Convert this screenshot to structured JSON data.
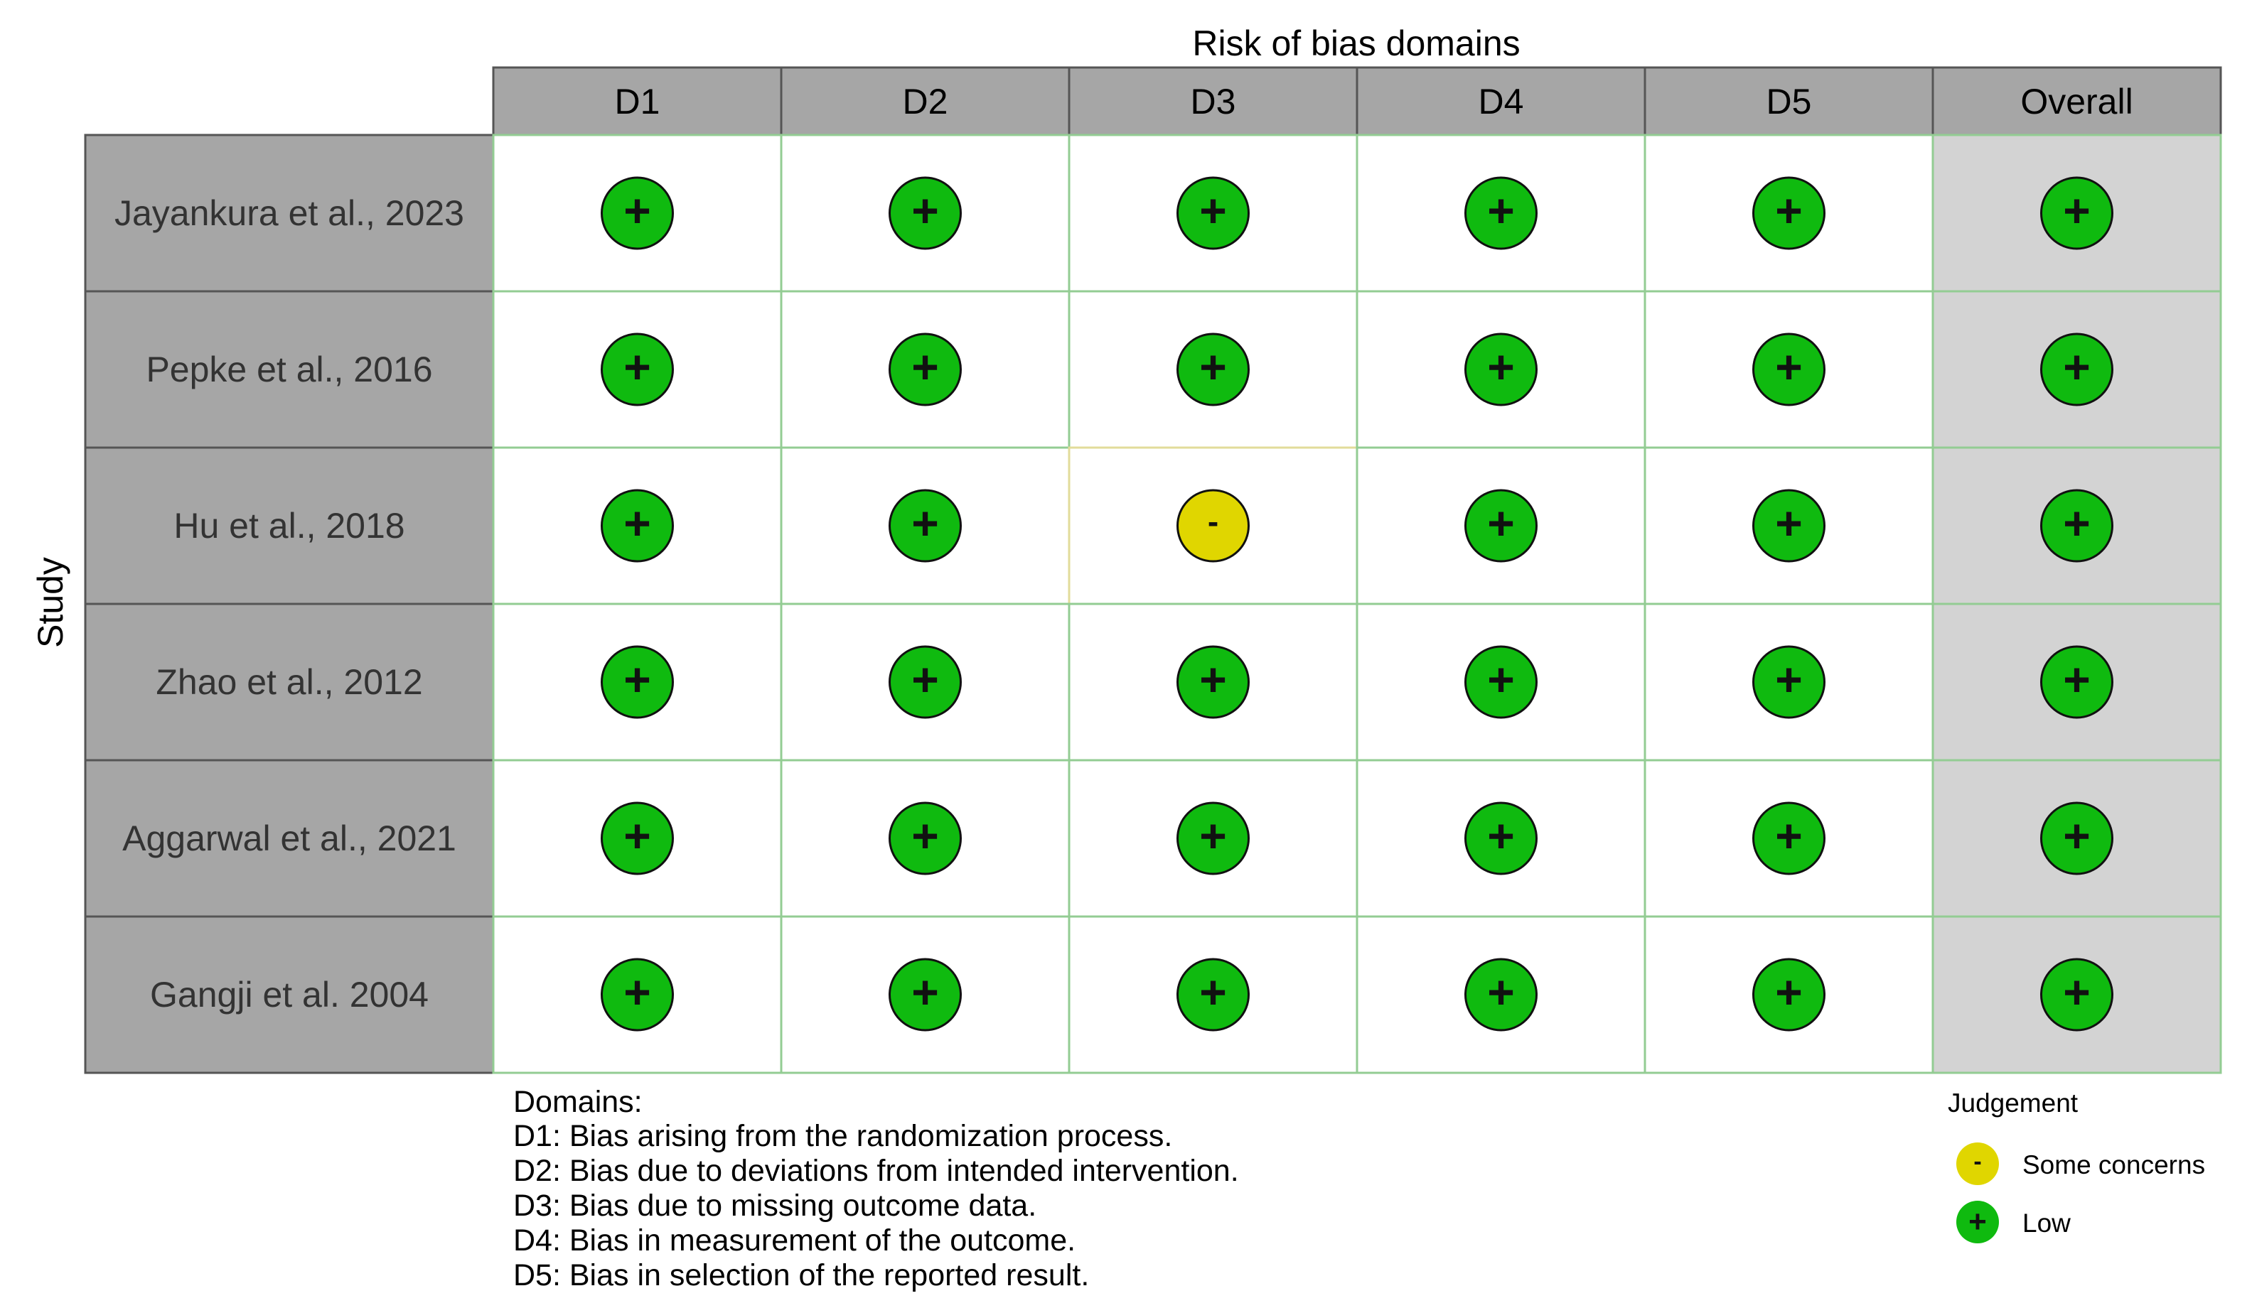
{
  "chart_data": {
    "type": "table",
    "title": "Risk of bias domains",
    "ylabel": "Study",
    "domains": [
      "D1",
      "D2",
      "D3",
      "D4",
      "D5",
      "Overall"
    ],
    "studies": [
      "Jayankura et al., 2023",
      "Pepke et al., 2016",
      "Hu et al., 2018",
      "Zhao et al., 2012",
      "Aggarwal et al., 2021",
      "Gangji et al. 2004"
    ],
    "judgements": [
      [
        "+",
        "+",
        "+",
        "+",
        "+",
        "+"
      ],
      [
        "+",
        "+",
        "+",
        "+",
        "+",
        "+"
      ],
      [
        "+",
        "+",
        "-",
        "+",
        "+",
        "+"
      ],
      [
        "+",
        "+",
        "+",
        "+",
        "+",
        "+"
      ],
      [
        "+",
        "+",
        "+",
        "+",
        "+",
        "+"
      ],
      [
        "+",
        "+",
        "+",
        "+",
        "+",
        "+"
      ]
    ],
    "domains_key_title": "Domains:",
    "domains_key": [
      "D1: Bias arising from the randomization process.",
      "D2: Bias due to deviations from intended intervention.",
      "D3: Bias due to missing outcome data.",
      "D4: Bias in measurement of the outcome.",
      "D5: Bias in selection of the reported result."
    ],
    "legend": {
      "title": "Judgement",
      "entries": [
        {
          "symbol": "-",
          "label": "Some concerns",
          "color": "#e0d600"
        },
        {
          "symbol": "+",
          "label": "Low",
          "color": "#0fba0f"
        }
      ]
    },
    "colors": {
      "low": "#0fba0f",
      "some_concerns": "#e0d600",
      "header_fill": "#a6a6a6",
      "study_fill": "#a6a6a6",
      "overall_fill": "#d3d3d3",
      "low_border": "#93cc93",
      "some_border": "#e2dc9a"
    }
  }
}
